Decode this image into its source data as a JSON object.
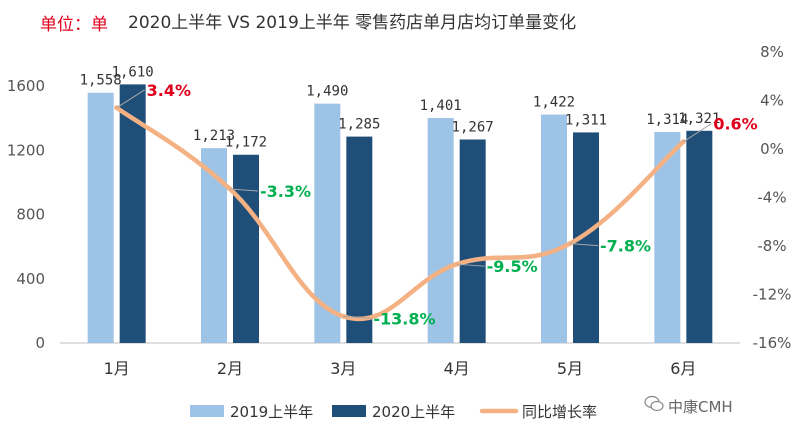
{
  "header": {
    "unit_label": "单位：单",
    "title": "2020上半年 VS 2019上半年 零售药店单月店均订单量变化"
  },
  "watermark": {
    "text": "中康CMH",
    "icon": "wechat-icon"
  },
  "colors": {
    "series_2019": "#9dc3e6",
    "series_2020": "#1f4e79",
    "growth_line": "#f4b183",
    "positive": "#e0001b",
    "negative": "#00b050"
  },
  "chart_data": {
    "type": "bar",
    "categories": [
      "1月",
      "2月",
      "3月",
      "4月",
      "5月",
      "6月"
    ],
    "series": [
      {
        "name": "2019上半年",
        "type": "bar",
        "axis": "left",
        "values": [
          1558,
          1213,
          1490,
          1401,
          1422,
          1314
        ]
      },
      {
        "name": "2020上半年",
        "type": "bar",
        "axis": "left",
        "values": [
          1610,
          1172,
          1285,
          1267,
          1311,
          1321
        ]
      },
      {
        "name": "同比增长率",
        "type": "line",
        "axis": "right",
        "unit": "%",
        "values": [
          3.4,
          -3.3,
          -13.8,
          -9.5,
          -7.8,
          0.6
        ]
      }
    ],
    "bar_value_labels": [
      [
        "1,558",
        "1,213",
        "1,490",
        "1,401",
        "1,422",
        "1,314"
      ],
      [
        "1,610",
        "1,172",
        "1,285",
        "1,267",
        "1,311",
        "1,321"
      ]
    ],
    "line_value_labels": [
      "3.4%",
      "-3.3%",
      "-13.8%",
      "-9.5%",
      "-7.8%",
      "0.6%"
    ],
    "y_left": {
      "ticks": [
        "0",
        "400",
        "800",
        "1200",
        "1600"
      ],
      "range": [
        0,
        1800
      ]
    },
    "y_right": {
      "ticks": [
        "-16%",
        "-12%",
        "-8%",
        "-4%",
        "0%",
        "4%",
        "8%"
      ],
      "range": [
        -16,
        8
      ]
    },
    "grid": false,
    "legend_position": "bottom"
  }
}
